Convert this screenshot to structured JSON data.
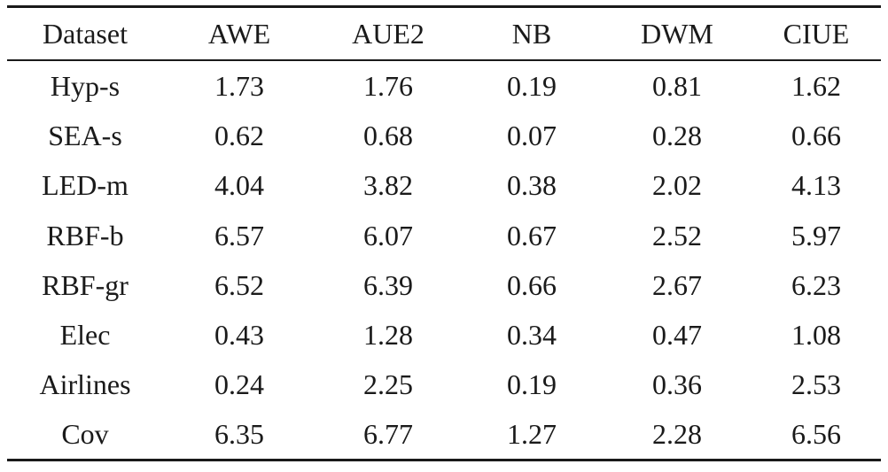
{
  "table": {
    "columns": [
      "Dataset",
      "AWE",
      "AUE2",
      "NB",
      "DWM",
      "CIUE"
    ],
    "bold_column": "NB",
    "rows": [
      {
        "dataset": "Hyp-s",
        "AWE": "1.73",
        "AUE2": "1.76",
        "NB": "0.19",
        "DWM": "0.81",
        "CIUE": "1.62"
      },
      {
        "dataset": "SEA-s",
        "AWE": "0.62",
        "AUE2": "0.68",
        "NB": "0.07",
        "DWM": "0.28",
        "CIUE": "0.66"
      },
      {
        "dataset": "LED-m",
        "AWE": "4.04",
        "AUE2": "3.82",
        "NB": "0.38",
        "DWM": "2.02",
        "CIUE": "4.13"
      },
      {
        "dataset": "RBF-b",
        "AWE": "6.57",
        "AUE2": "6.07",
        "NB": "0.67",
        "DWM": "2.52",
        "CIUE": "5.97"
      },
      {
        "dataset": "RBF-gr",
        "AWE": "6.52",
        "AUE2": "6.39",
        "NB": "0.66",
        "DWM": "2.67",
        "CIUE": "6.23"
      },
      {
        "dataset": "Elec",
        "AWE": "0.43",
        "AUE2": "1.28",
        "NB": "0.34",
        "DWM": "0.47",
        "CIUE": "1.08"
      },
      {
        "dataset": "Airlines",
        "AWE": "0.24",
        "AUE2": "2.25",
        "NB": "0.19",
        "DWM": "0.36",
        "CIUE": "2.53"
      },
      {
        "dataset": "Cov",
        "AWE": "6.35",
        "AUE2": "6.77",
        "NB": "1.27",
        "DWM": "2.28",
        "CIUE": "6.56"
      }
    ]
  },
  "colors": {
    "text": "#1a1a1a",
    "rules": "#1a1a1a",
    "background": "#ffffff"
  }
}
